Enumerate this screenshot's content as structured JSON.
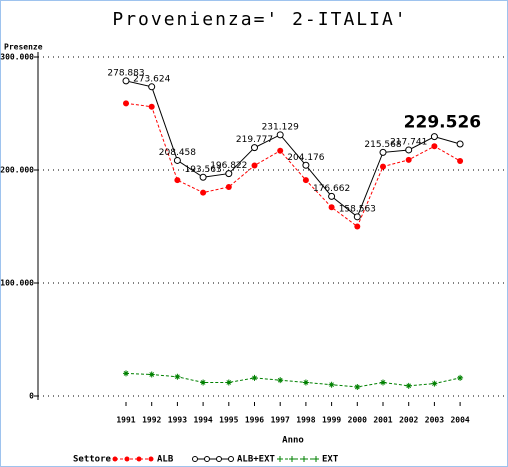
{
  "chart_data": {
    "type": "line",
    "title": "Provenienza=' 2-ITALIA'",
    "ylabel": "Presenze",
    "xlabel": "Anno",
    "legend_title": "Settore",
    "categories": [
      "1991",
      "1992",
      "1993",
      "1994",
      "1995",
      "1996",
      "1997",
      "1998",
      "1999",
      "2000",
      "2001",
      "2002",
      "2003",
      "2004"
    ],
    "ylim": [
      0,
      300000
    ],
    "yticks": [
      {
        "value": 0,
        "label": "0"
      },
      {
        "value": 100000,
        "label": "100.000"
      },
      {
        "value": 200000,
        "label": "200.000"
      },
      {
        "value": 300000,
        "label": "300.000"
      }
    ],
    "grid": true,
    "series": [
      {
        "name": "ALB",
        "color": "#ff0000",
        "marker": "dot",
        "dashed": true,
        "values": [
          259000,
          256000,
          191000,
          180000,
          185000,
          204000,
          217000,
          191000,
          167000,
          150000,
          203000,
          209000,
          221000,
          208000
        ]
      },
      {
        "name": "ALB+EXT",
        "color": "#000000",
        "marker": "circle",
        "dashed": false,
        "values": [
          278883,
          273624,
          208458,
          193563,
          196822,
          219777,
          231129,
          204176,
          176662,
          158563,
          215568,
          217741,
          229526,
          223000
        ],
        "value_labels": [
          "278.883",
          "273.624",
          "208.458",
          "193.563",
          "196.822",
          "219.777",
          "231.129",
          "204.176",
          "176.662",
          "158.563",
          "215.568",
          "217.741",
          "229.526",
          null
        ]
      },
      {
        "name": "EXT",
        "color": "#008000",
        "marker": "star",
        "dashed": true,
        "values": [
          20000,
          19000,
          17000,
          12000,
          12000,
          16000,
          14000,
          12000,
          10000,
          8000,
          12000,
          9000,
          11000,
          16000
        ]
      }
    ]
  }
}
